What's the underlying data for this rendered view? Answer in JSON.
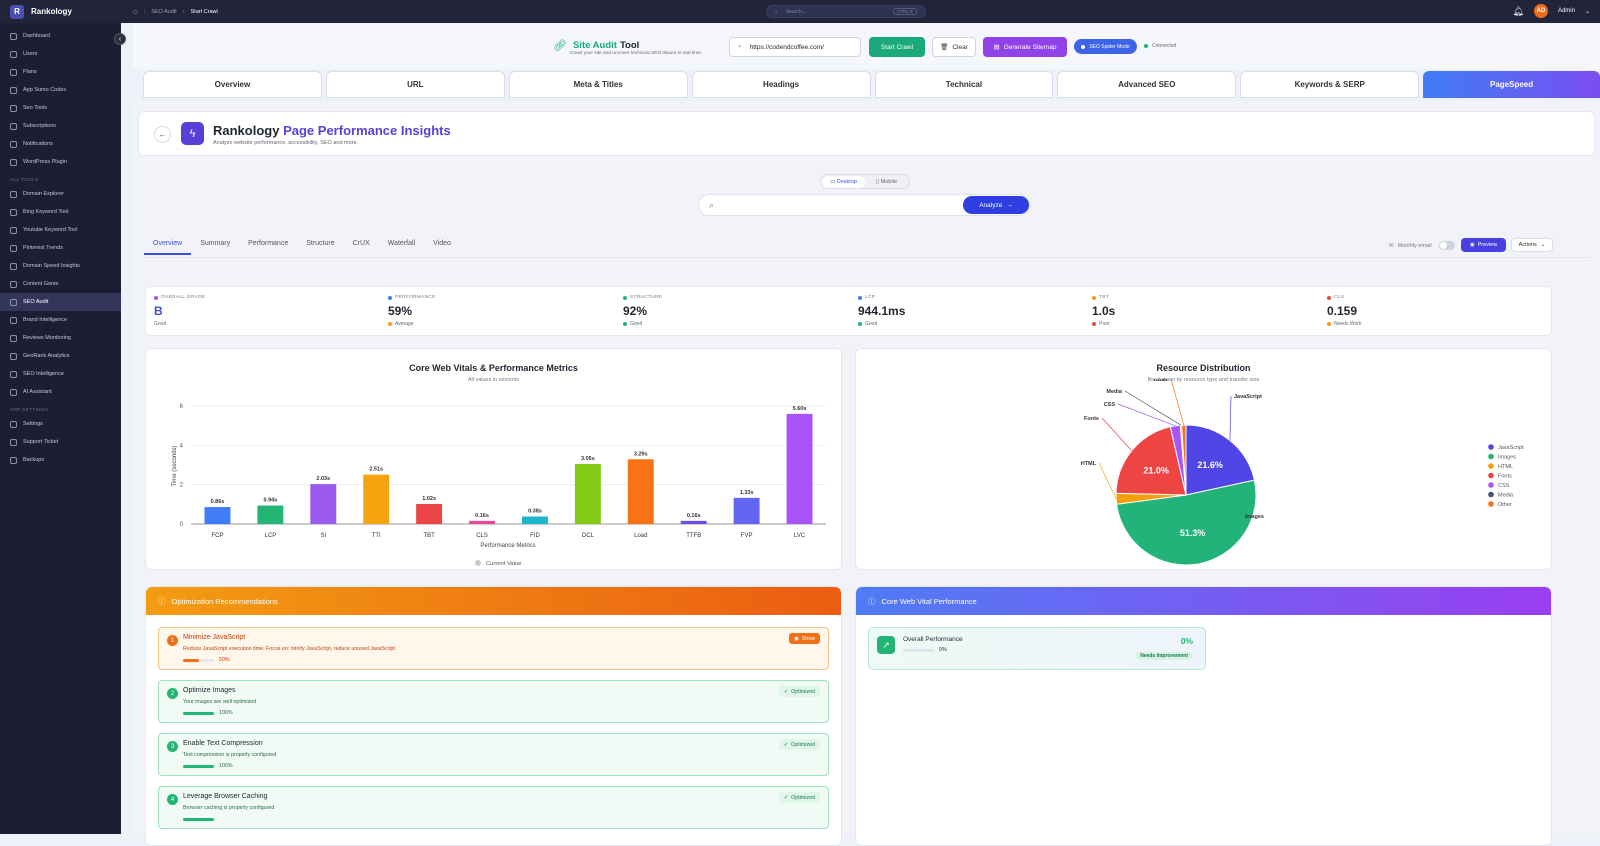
{
  "topbar": {
    "brand_initial": "R",
    "brand": "Rankology",
    "crumb1": "SEO Audit",
    "crumb2": "Start Crawl",
    "search_placeholder": "Search...",
    "search_kbd": "CTRL K",
    "avatar": "AD",
    "user": "Admin"
  },
  "sidebar": {
    "main": [
      "Dashboard",
      "Users",
      "Plans",
      "App Sumo Codes",
      "Seo Tools",
      "Subscriptions",
      "Notifications",
      "WordPress Plugin"
    ],
    "tools_label": "ALL TOOLS",
    "tools": [
      "Domain Explorer",
      "Bing Keyword Tool",
      "Youtube Keyword Tool",
      "Pinterest Trends",
      "Domain Speed Insights",
      "Content Genie",
      "SEO Audit",
      "Brand Intelligence",
      "Reviews Monitoring",
      "GeoRank Analytics",
      "SEO Intelligence",
      "AI Assistant"
    ],
    "settings_label": "APP SETTINGS",
    "settings": [
      "Settings",
      "Support Ticket",
      "Backups"
    ]
  },
  "audit": {
    "title1": "Site Audit",
    "title2": "Tool",
    "subtitle": "Crawl your site and uncover technical SEO issues in real time.",
    "url": "https://codendcoffee.com/",
    "crawl": "Start Crawl",
    "clear": "Clear",
    "sitemap": "Generate Sitemap",
    "spider": "SEO Spider Mode",
    "connected": "Connected"
  },
  "tabs": [
    "Overview",
    "URL",
    "Meta & Titles",
    "Headings",
    "Technical",
    "Advanced SEO",
    "Keywords & SERP",
    "PageSpeed"
  ],
  "header": {
    "title1": "Rankology",
    "title2": "Page Performance Insights",
    "subtitle": "Analyze website performance, accessibility, SEO and more."
  },
  "device": {
    "desktop": "Desktop",
    "mobile": "Mobile"
  },
  "analyze": "Analyze",
  "subtabs": [
    "Overview",
    "Summary",
    "Performance",
    "Structure",
    "CrUX",
    "Waterfall",
    "Video"
  ],
  "toolbar": {
    "monthly": "Monthly email",
    "preview": "Preview",
    "actions": "Actions"
  },
  "stats": [
    {
      "label": "OVERALL GRADE",
      "value": "B",
      "sub": "Good",
      "dot": "#9b59f0",
      "subdot": "",
      "valcolor": "#3d4fd6"
    },
    {
      "label": "PERFORMANCE",
      "value": "59%",
      "sub": "Average",
      "dot": "#3f7cf5",
      "subdot": "#f39c12",
      "valcolor": "#1f2430"
    },
    {
      "label": "STRUCTURE",
      "value": "92%",
      "sub": "Good",
      "dot": "#22b573",
      "subdot": "#22b573",
      "valcolor": "#1f2430"
    },
    {
      "label": "LCP",
      "value": "944.1ms",
      "sub": "Good",
      "dot": "#3f7cf5",
      "subdot": "#22b573",
      "valcolor": "#1f2430"
    },
    {
      "label": "TBT",
      "value": "1.0s",
      "sub": "Poor",
      "dot": "#f39c12",
      "subdot": "#e74c3c",
      "valcolor": "#1f2430"
    },
    {
      "label": "CLS",
      "value": "0.159",
      "sub": "Needs Work",
      "dot": "#e74c3c",
      "subdot": "#f39c12",
      "valcolor": "#1f2430"
    }
  ],
  "chart_data": [
    {
      "type": "bar",
      "title": "Core Web Vitals & Performance Metrics",
      "subtitle": "All values in seconds",
      "xlabel": "Performance Metrics",
      "ylabel": "Time (seconds)",
      "ylim": [
        0,
        6
      ],
      "yticks": [
        0,
        2,
        4,
        6
      ],
      "categories": [
        "FCP",
        "LCP",
        "SI",
        "TTI",
        "TBT",
        "CLS",
        "FID",
        "DCL",
        "Load",
        "TTFB",
        "FVP",
        "LVC"
      ],
      "values": [
        0.86,
        0.94,
        2.03,
        2.51,
        1.02,
        0.16,
        0.38,
        3.05,
        3.29,
        0.16,
        1.33,
        5.6
      ],
      "labels": [
        "0.86s",
        "0.94s",
        "2.03s",
        "2.51s",
        "1.02s",
        "0.16s",
        "0.38s",
        "3.05s",
        "3.29s",
        "0.16s",
        "1.33s",
        "5.60s"
      ],
      "colors": [
        "#3f7cf5",
        "#22b573",
        "#9b59f0",
        "#f5a30f",
        "#ec4545",
        "#ec4899",
        "#1cb5c9",
        "#84cc16",
        "#f97316",
        "#6d4ee0",
        "#6366f1",
        "#a855f7"
      ],
      "legend": "Current Value"
    },
    {
      "type": "pie",
      "title": "Resource Distribution",
      "subtitle": "Breakdown by resource type and transfer size",
      "categories": [
        "JavaScript",
        "Images",
        "HTML",
        "Fonts",
        "CSS",
        "Media",
        "Other"
      ],
      "values": [
        21.6,
        51.3,
        2.5,
        21.0,
        2.3,
        0.3,
        1.0
      ],
      "labels": [
        "21.6%",
        "51.3%",
        "",
        "21.0%",
        "",
        "",
        ""
      ],
      "colors": [
        "#4f46e5",
        "#22b37a",
        "#f59e0b",
        "#ef4444",
        "#a855f7",
        "#475569",
        "#f97316"
      ],
      "legend_position": "right"
    }
  ],
  "recs": {
    "title": "Optimization Recommendations",
    "items": [
      {
        "n": "1",
        "title": "Minimize JavaScript",
        "desc": "Reduce JavaScript execution time. Focus on: minify JavaScript, reduce unused JavaScript",
        "pct": "50%",
        "fill": 0.5,
        "badge": "Show",
        "state": "warn"
      },
      {
        "n": "2",
        "title": "Optimize Images",
        "desc": "Your images are well optimized",
        "pct": "100%",
        "fill": 1,
        "badge": "Optimized",
        "state": "ok"
      },
      {
        "n": "3",
        "title": "Enable Text Compression",
        "desc": "Text compression is properly configured",
        "pct": "100%",
        "fill": 1,
        "badge": "Optimized",
        "state": "ok"
      },
      {
        "n": "4",
        "title": "Leverage Browser Caching",
        "desc": "Browser caching is properly configured",
        "pct": "",
        "fill": 1,
        "badge": "Optimized",
        "state": "ok"
      }
    ]
  },
  "cwv": {
    "title": "Core Web Vital Performance",
    "overall": "Overall Performance",
    "value": "0%",
    "bar_pct": "0%",
    "fill": 0,
    "status": "Needs Improvement"
  }
}
